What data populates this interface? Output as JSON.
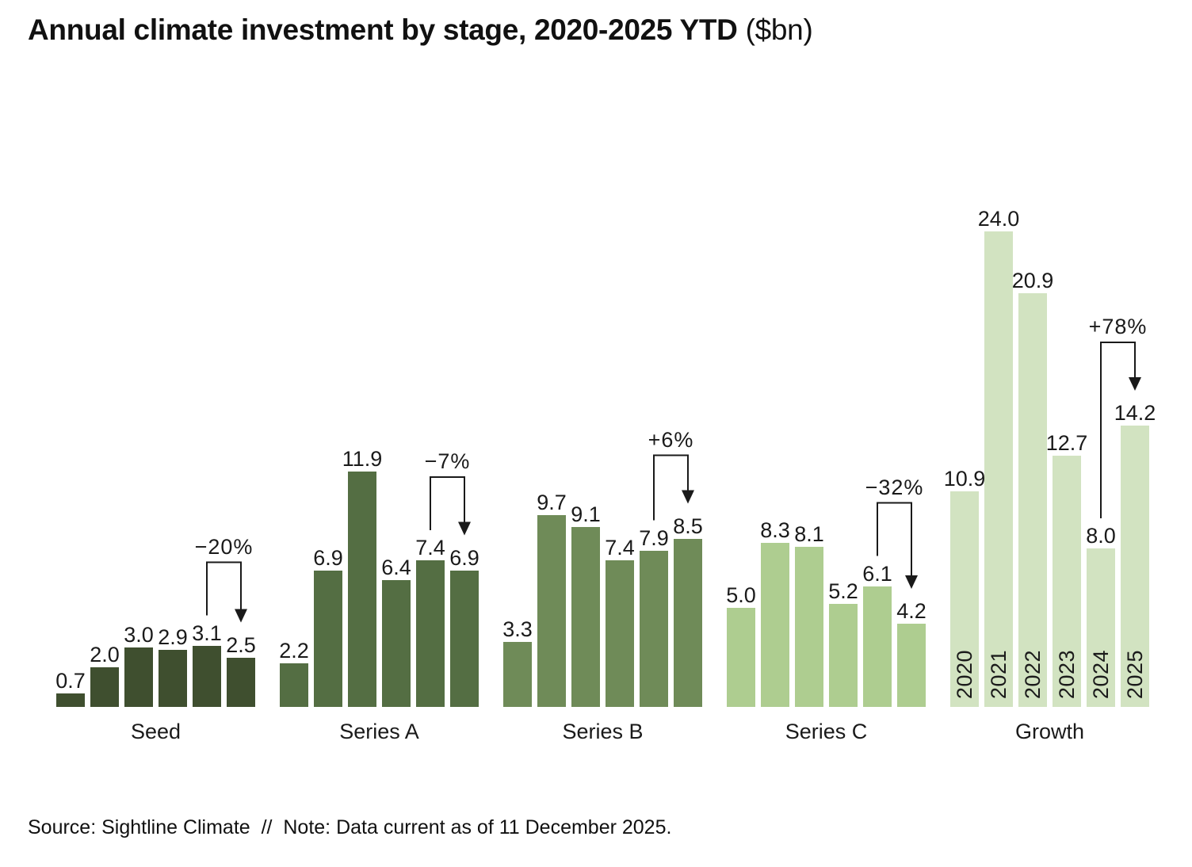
{
  "title": {
    "main": "Annual climate investment by stage, 2020-2025 YTD",
    "suffix": " ($bn)"
  },
  "footer": {
    "text": "Source: Sightline Climate  //  Note: Data current as of 11 December 2025."
  },
  "chart_data": {
    "type": "bar",
    "title": "Annual climate investment by stage, 2020-2025 YTD ($bn)",
    "unit": "$bn",
    "categories": [
      "2020",
      "2021",
      "2022",
      "2023",
      "2024",
      "2025"
    ],
    "ylim": [
      0,
      25
    ],
    "grid": false,
    "legend": false,
    "value_label_format": "one_decimal",
    "groups": [
      {
        "name": "Seed",
        "color": "#3F4F2F",
        "values": [
          0.7,
          2.0,
          3.0,
          2.9,
          3.1,
          2.5
        ],
        "show_years": false,
        "change": {
          "label": "−20%",
          "from_index": 4,
          "to_index": 5
        }
      },
      {
        "name": "Series A",
        "color": "#546E43",
        "values": [
          2.2,
          6.9,
          11.9,
          6.4,
          7.4,
          6.9
        ],
        "show_years": false,
        "change": {
          "label": "−7%",
          "from_index": 4,
          "to_index": 5
        }
      },
      {
        "name": "Series B",
        "color": "#6F8B58",
        "values": [
          3.3,
          9.7,
          9.1,
          7.4,
          7.9,
          8.5
        ],
        "show_years": false,
        "change": {
          "label": "+6%",
          "from_index": 4,
          "to_index": 5
        }
      },
      {
        "name": "Series C",
        "color": "#AECD90",
        "values": [
          5.0,
          8.3,
          8.1,
          5.2,
          6.1,
          4.2
        ],
        "show_years": false,
        "change": {
          "label": "−32%",
          "from_index": 4,
          "to_index": 5
        }
      },
      {
        "name": "Growth",
        "color": "#D2E3C1",
        "values": [
          10.9,
          24.0,
          20.9,
          12.7,
          8.0,
          14.2
        ],
        "show_years": true,
        "change": {
          "label": "+78%",
          "from_index": 4,
          "to_index": 5
        }
      }
    ]
  }
}
